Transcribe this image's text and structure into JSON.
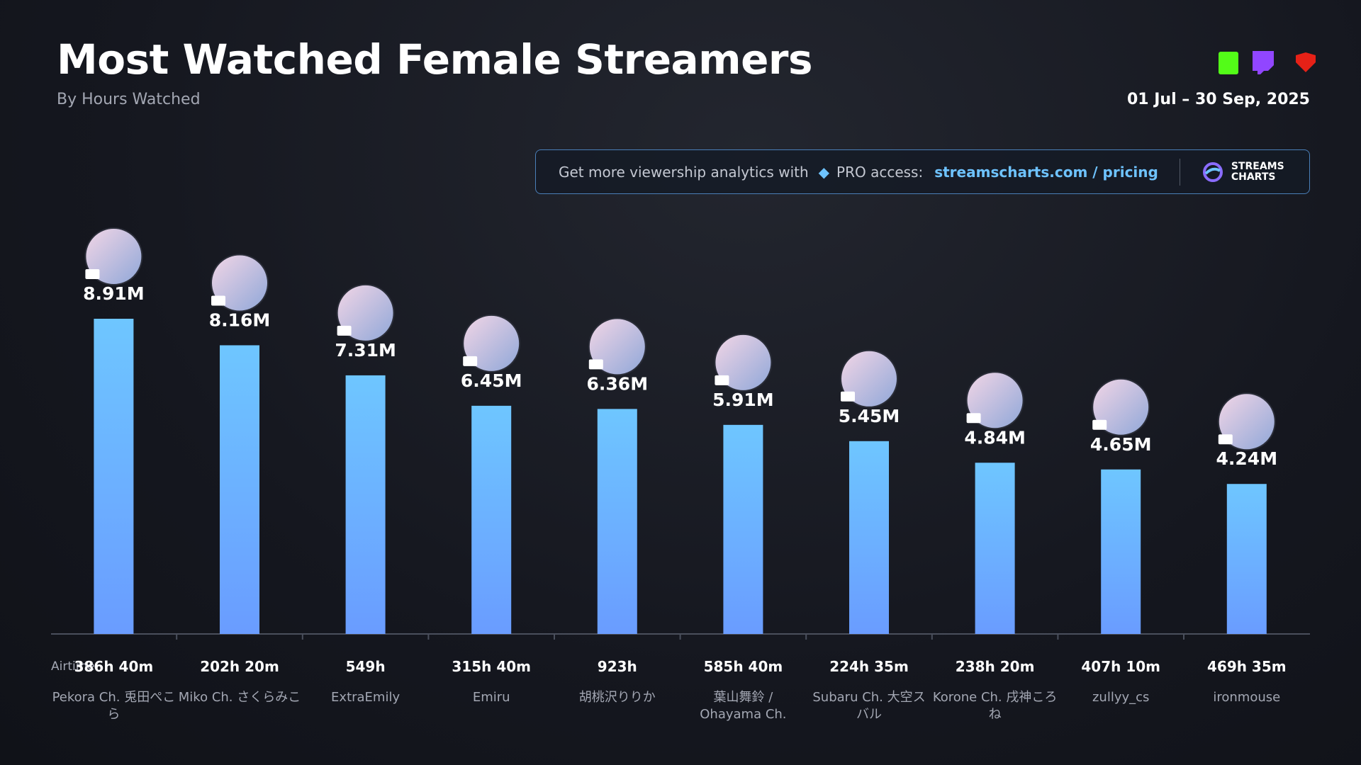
{
  "chart_data": {
    "type": "bar",
    "title": "Most Watched Female Streamers",
    "subtitle": "By Hours Watched",
    "date_range": "01 Jul – 30 Sep, 2025",
    "categories": [
      "Pekora Ch. 兎田ぺこら",
      "Miko Ch. さくらみこ",
      "ExtraEmily",
      "Emiru",
      "胡桃沢りりか",
      "葉山舞鈴 / Ohayama Ch.",
      "Subaru Ch. 大空スバル",
      "Korone Ch. 戌神ころね",
      "zullyy_cs",
      "ironmouse"
    ],
    "values": [
      8910000,
      8160000,
      7310000,
      6450000,
      6360000,
      5910000,
      5450000,
      4840000,
      4650000,
      4240000
    ],
    "value_labels": [
      "8.91M",
      "8.16M",
      "7.31M",
      "6.45M",
      "6.36M",
      "5.91M",
      "5.45M",
      "4.84M",
      "4.65M",
      "4.24M"
    ],
    "airtime_label": "Airtime:",
    "airtime": [
      "386h 40m",
      "202h 20m",
      "549h",
      "315h 40m",
      "923h",
      "585h 40m",
      "224h 35m",
      "238h 20m",
      "407h 10m",
      "469h 35m"
    ],
    "color": "#6ec3ff"
  },
  "banner": {
    "text": "Get more viewership analytics with",
    "pro": "PRO access:",
    "link": "streamscharts.com / pricing",
    "logo_top": "STREAMS",
    "logo_bottom": "CHARTS"
  }
}
